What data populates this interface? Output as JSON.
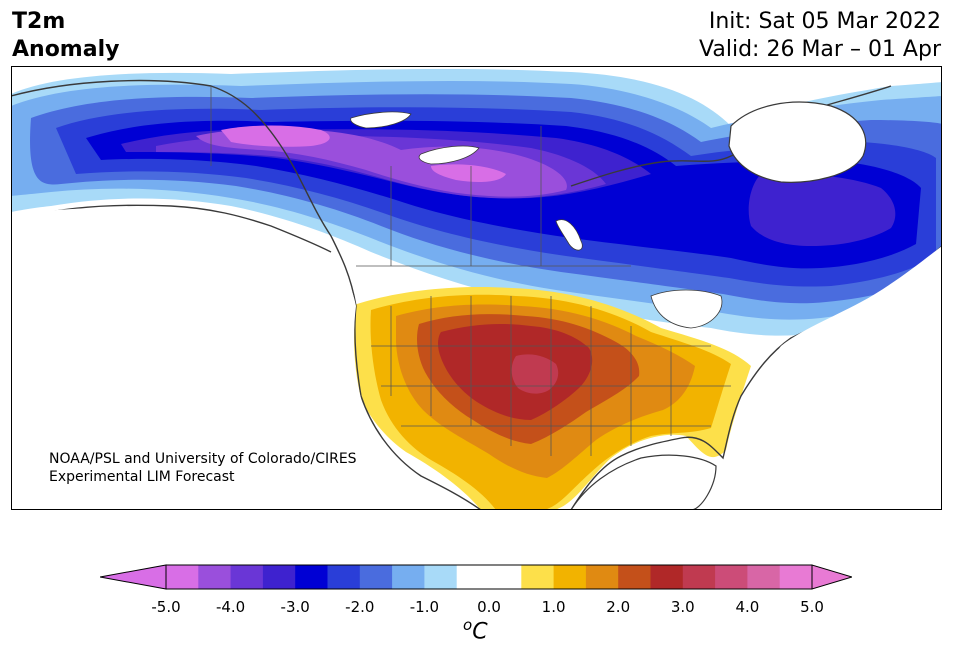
{
  "title": {
    "left_line1": "T2m",
    "left_line2": "Anomaly",
    "right_line1": "Init: Sat 05 Mar 2022",
    "right_line2": "Valid: 26 Mar – 01 Apr"
  },
  "credit": {
    "line1": "NOAA/PSL and University of Colorado/CIRES",
    "line2": "Experimental LIM Forecast"
  },
  "colorbar": {
    "unit_base": "C",
    "unit_sup": "o",
    "tick_labels": [
      "-5.0",
      "-4.0",
      "-3.0",
      "-2.0",
      "-1.0",
      "0.0",
      "1.0",
      "2.0",
      "3.0",
      "4.0",
      "5.0"
    ],
    "bin_colors": [
      "#d86ee6",
      "#9a4fdc",
      "#6a36d6",
      "#3e22cf",
      "#0000d4",
      "#2a3ed8",
      "#4a6cde",
      "#76aef0",
      "#a8daf8",
      "#ffffff",
      "#ffffff",
      "#fde04a",
      "#f2b300",
      "#e08a12",
      "#c4501a",
      "#b02828",
      "#c03a50",
      "#cc4c78",
      "#d866a6",
      "#e87ad4"
    ]
  },
  "map_colors": {
    "land": "#ffffff",
    "coast": "#3a3a3a"
  }
}
